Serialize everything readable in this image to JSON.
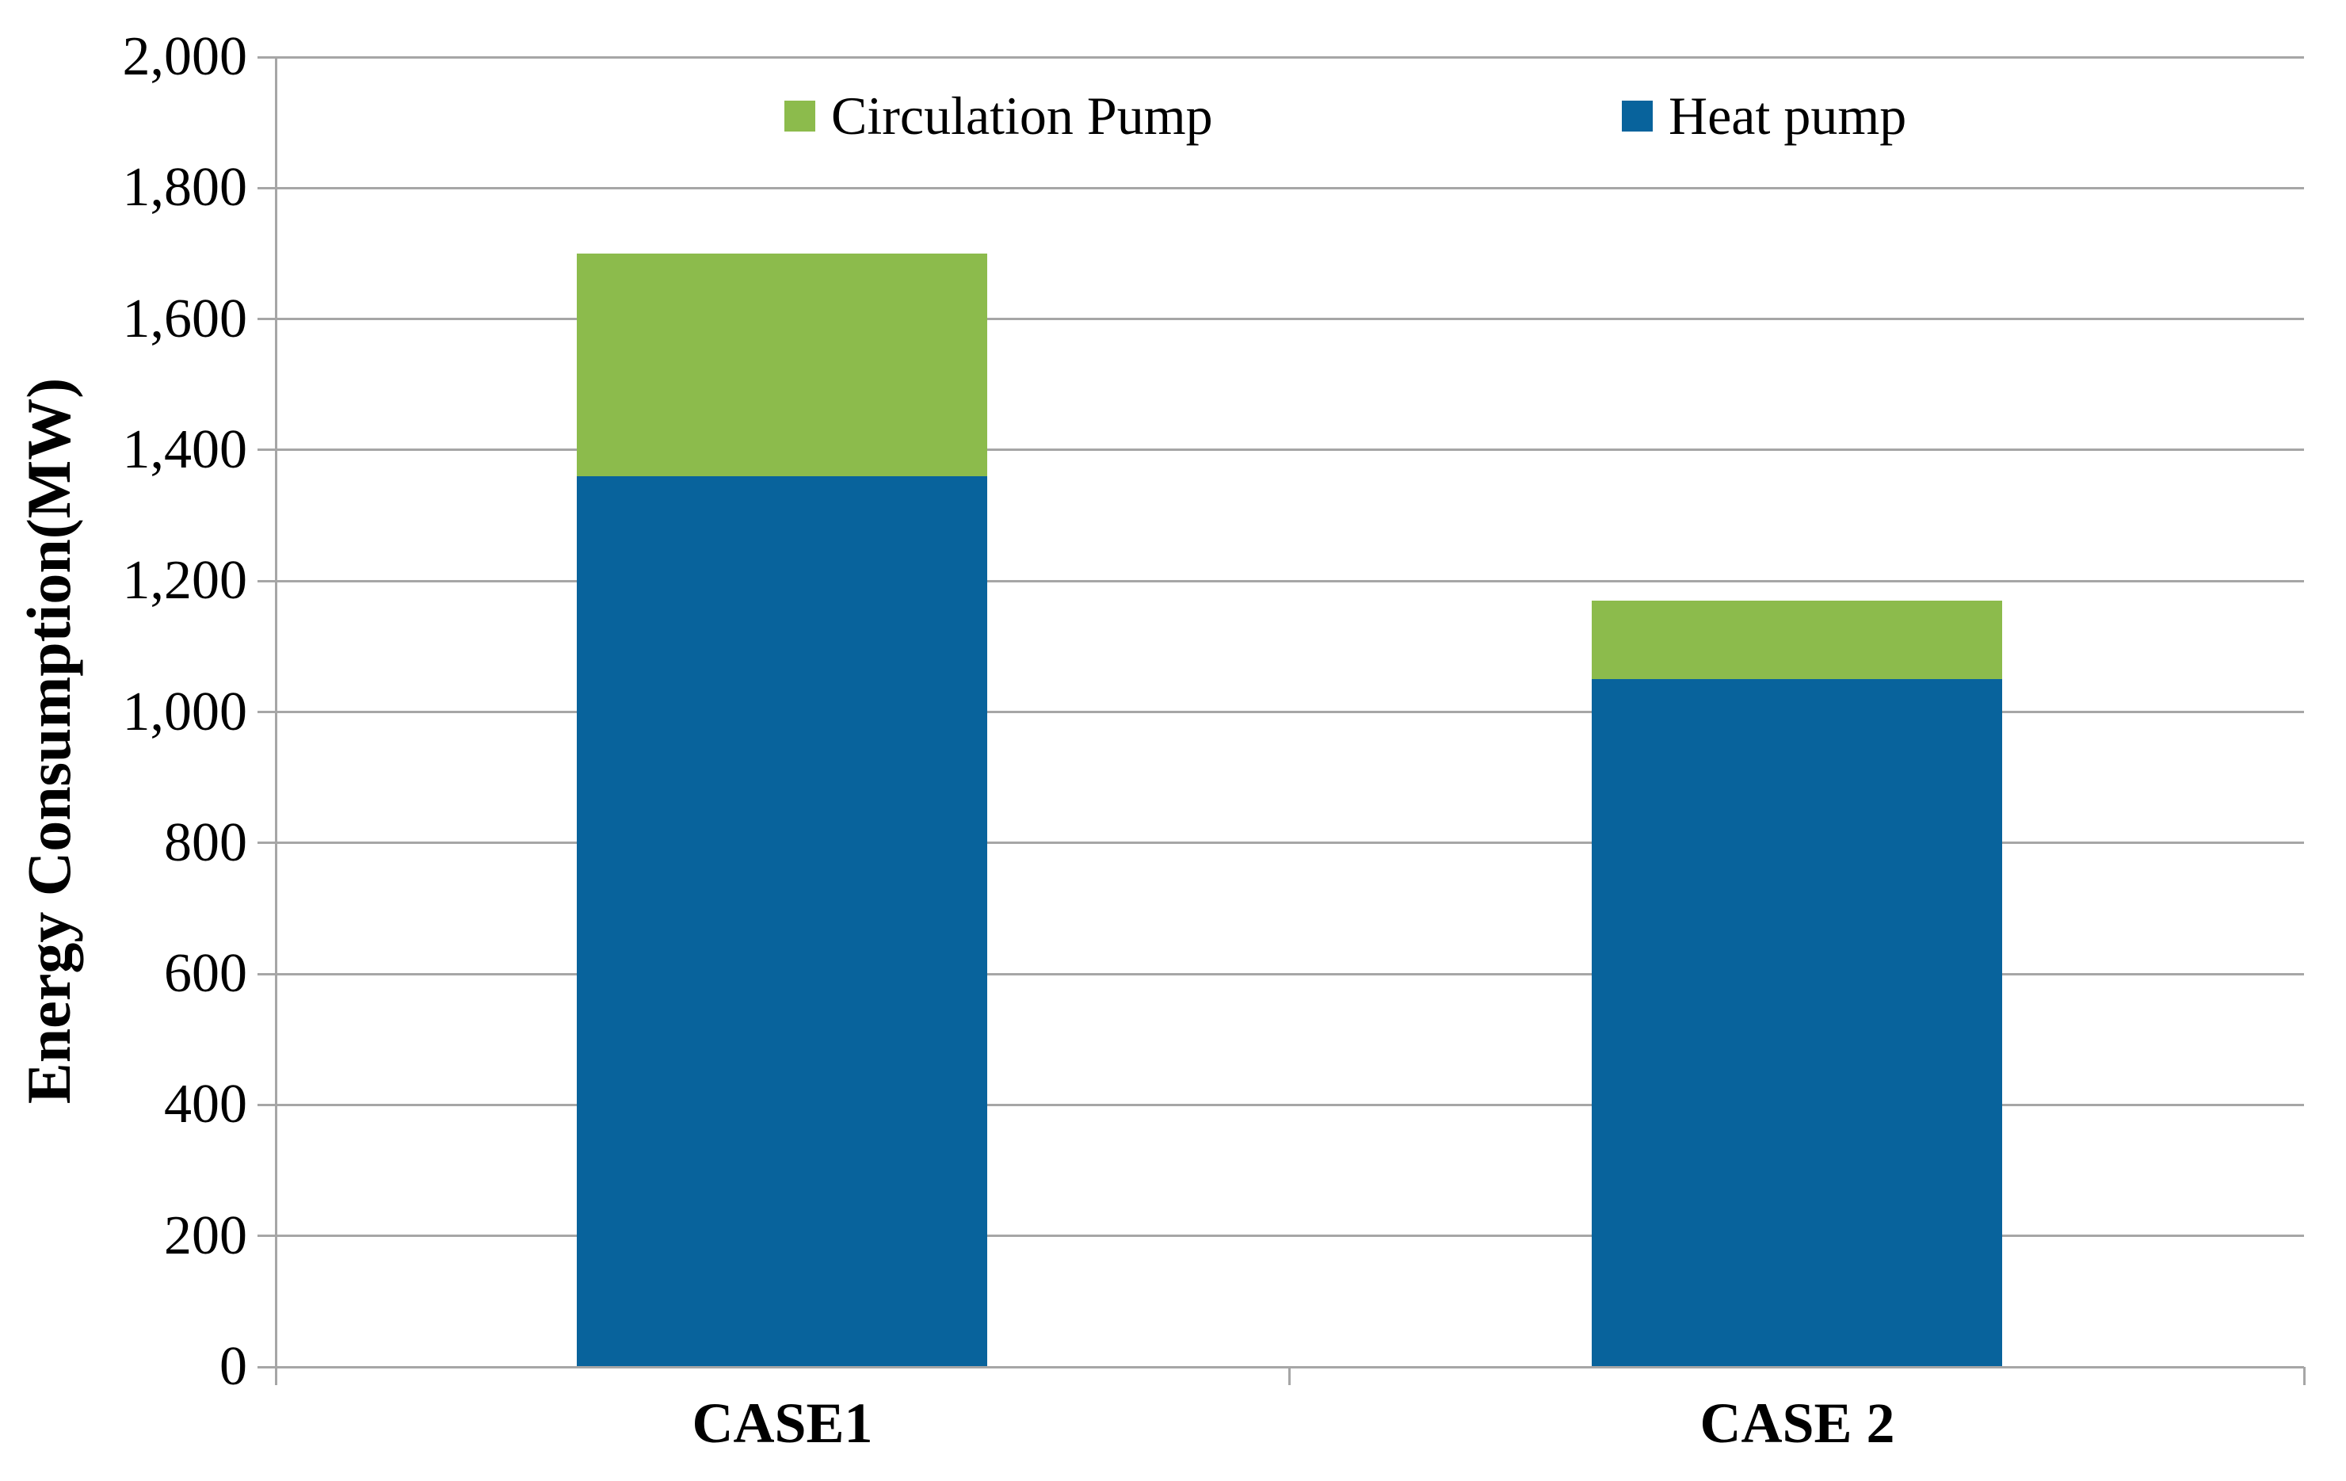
{
  "chart_data": {
    "type": "bar",
    "variant": "stacked-column",
    "title": "",
    "categories": [
      "CASE1",
      "CASE 2"
    ],
    "series": [
      {
        "name": "Heat pump",
        "color": "#08639C",
        "values": [
          1360,
          1050
        ]
      },
      {
        "name": "Circulation Pump",
        "color": "#8CBB4C",
        "values": [
          340,
          120
        ]
      }
    ],
    "stack_totals": [
      1700,
      1170
    ],
    "xlabel": "",
    "ylabel": "Energy Consumption(MW)",
    "ylim": [
      0,
      2000
    ],
    "ytick_step": 200,
    "yticks": [
      "2,000",
      "1,800",
      "1,600",
      "1,400",
      "1,200",
      "1,000",
      "800",
      "600",
      "400",
      "200",
      "0"
    ],
    "grid": true,
    "gridline_color": "#A6A6A6",
    "axis_color": "#A6A6A6",
    "text_color": "#000000",
    "legend_position": "top-inside",
    "legend_order_left_to_right": [
      "Circulation Pump",
      "Heat pump"
    ]
  }
}
